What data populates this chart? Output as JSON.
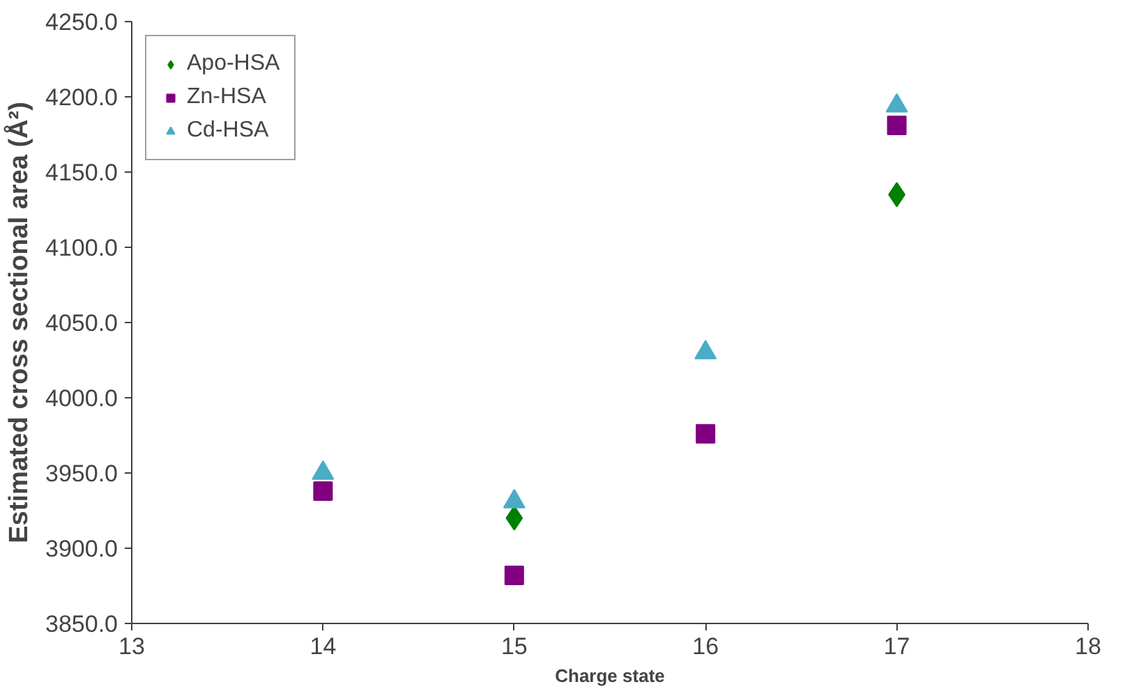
{
  "chart_data": {
    "type": "scatter",
    "xlabel": "Charge state",
    "ylabel": "Estimated cross sectional area (Å²)",
    "xlim": [
      13,
      18
    ],
    "xticks": [
      13,
      14,
      15,
      16,
      17,
      18
    ],
    "ylim": [
      3850,
      4250
    ],
    "yticks": [
      {
        "value": 3850,
        "label": "3850.0"
      },
      {
        "value": 3900,
        "label": "3900.0"
      },
      {
        "value": 3950,
        "label": "3950.0"
      },
      {
        "value": 4000,
        "label": "4000.0"
      },
      {
        "value": 4050,
        "label": "4050.0"
      },
      {
        "value": 4100,
        "label": "4100.0"
      },
      {
        "value": 4150,
        "label": "4150.0"
      },
      {
        "value": 4200,
        "label": "4200.0"
      },
      {
        "value": 4250,
        "label": "4250.0"
      }
    ],
    "grid": false,
    "legend": "top left",
    "series": [
      {
        "name": "Apo-HSA",
        "color": "#008000",
        "marker": "diamond",
        "x": [
          15,
          17
        ],
        "values": [
          3920,
          4135
        ]
      },
      {
        "name": "Zn-HSA",
        "color": "#800080",
        "marker": "square",
        "x": [
          14,
          15,
          16,
          17
        ],
        "values": [
          3938,
          3882,
          3976,
          4181
        ]
      },
      {
        "name": "Cd-HSA",
        "color": "#4bacc6",
        "marker": "triangle",
        "x": [
          14,
          15,
          16,
          17
        ],
        "values": [
          3950,
          3931,
          4030,
          4194
        ]
      }
    ]
  }
}
